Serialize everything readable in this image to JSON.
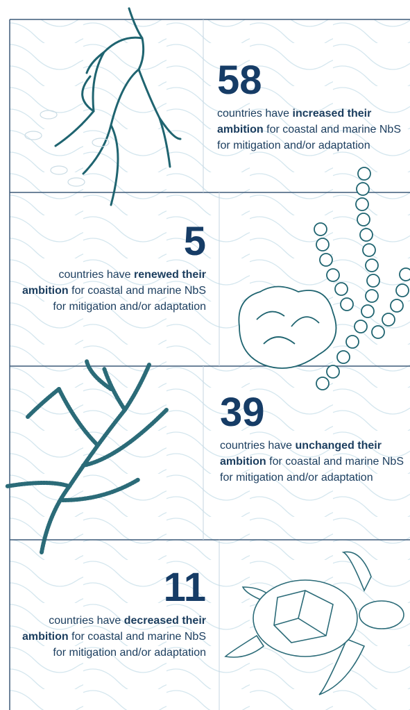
{
  "cards": [
    {
      "number": 58,
      "prefix": "countries have ",
      "bold": "increased their ambition",
      "suffix": " for coastal and marine NbS for mitigation and/or adaptation"
    },
    {
      "number": 5,
      "prefix": "countries have ",
      "bold": "renewed their ambition",
      "suffix": " for coastal and marine NbS for mitigation and/or adaptation"
    },
    {
      "number": 39,
      "prefix": "countries have ",
      "bold": "unchanged their ambition",
      "suffix": " for coastal and marine NbS for mitigation and/or adaptation"
    },
    {
      "number": 11,
      "prefix": "countries have ",
      "bold": "decreased their ambition",
      "suffix": " for coastal and marine NbS for mitigation and/or adaptation"
    }
  ]
}
